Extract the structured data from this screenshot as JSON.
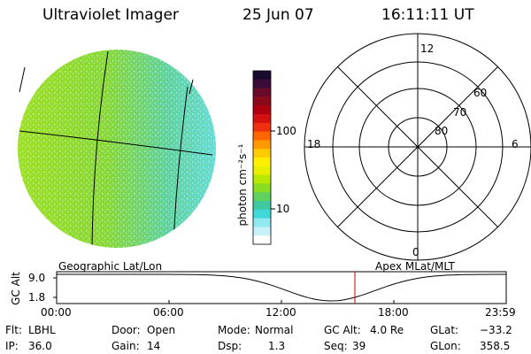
{
  "header": {
    "instrument": "Ultraviolet Imager",
    "date": "25 Jun 07",
    "time": "16:11:11 UT"
  },
  "colorbar": {
    "unit_label": "photon cm⁻²s⁻¹",
    "tick_100": "100",
    "tick_10": "10",
    "colors": [
      "#1a0a2e",
      "#3a0a3a",
      "#6a0a2a",
      "#8b0a1a",
      "#b00010",
      "#d41010",
      "#ee3010",
      "#ff6600",
      "#ff9900",
      "#ffcc00",
      "#ffee00",
      "#e8f000",
      "#b8e800",
      "#88dd20",
      "#60d060",
      "#40c8a0",
      "#40d8d8",
      "#90e8f0",
      "#c8f0f8",
      "#ffffff"
    ]
  },
  "polar_plot": {
    "mlt_top": "12",
    "mlt_left": "18",
    "mlt_right": "6",
    "mlt_bottom": "0",
    "lat_60": "60",
    "lat_70": "70",
    "lat_80": "80"
  },
  "timeline": {
    "left_label": "Geographic Lat/Lon",
    "right_label": "Apex MLat/MLT",
    "axis_label": "GC Alt",
    "y_top": "9.0",
    "y_bottom": "1.8",
    "ticks": [
      "00:00",
      "06:00",
      "12:00",
      "18:00",
      "23:59"
    ],
    "marker_color": "#cc0000"
  },
  "info": {
    "filter_label": "Flt:",
    "filter_value": "LBHL",
    "ip_label": "IP:",
    "ip_value": "36.0",
    "door_label": "Door:",
    "door_value": "Open",
    "gain_label": "Gain:",
    "gain_value": "14",
    "mode_label": "Mode:",
    "mode_value": "Normal",
    "dsp_label": "Dsp:",
    "dsp_value": "1.3",
    "gcalt_label": "GC Alt:",
    "gcalt_value": "4.0 Re",
    "seq_label": "Seq:",
    "seq_value": "39",
    "glat_label": "GLat:",
    "glat_value": "−33.2",
    "glon_label": "GLon:",
    "glon_value": "358.5"
  }
}
